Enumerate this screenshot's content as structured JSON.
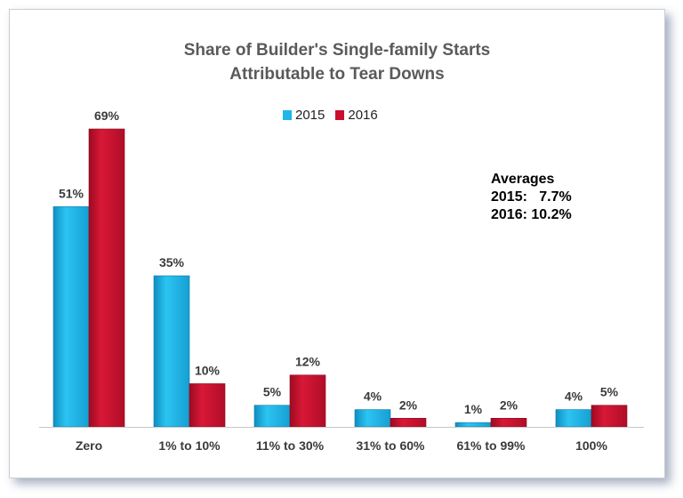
{
  "chart_data": {
    "type": "bar",
    "title": [
      "Share of Builder's Single-family Starts",
      "Attributable to Tear Downs"
    ],
    "categories": [
      "Zero",
      "1% to 10%",
      "11% to 30%",
      "31% to 60%",
      "61% to 99%",
      "100%"
    ],
    "series": [
      {
        "name": "2015",
        "values": [
          51,
          35,
          5,
          4,
          1,
          4
        ],
        "labels": [
          "51%",
          "35%",
          "5%",
          "4%",
          "1%",
          "4%"
        ],
        "color": "#1fb6e8"
      },
      {
        "name": "2016",
        "values": [
          69,
          10,
          12,
          2,
          2,
          5
        ],
        "labels": [
          "69%",
          "10%",
          "12%",
          "2%",
          "2%",
          "5%"
        ],
        "color": "#c8102e"
      }
    ],
    "ylim": [
      0,
      69
    ],
    "grid": false,
    "legend": "top-center",
    "annotation": {
      "heading": "Averages",
      "lines": [
        "2015:   7.7%",
        "2016: 10.2%"
      ]
    }
  }
}
